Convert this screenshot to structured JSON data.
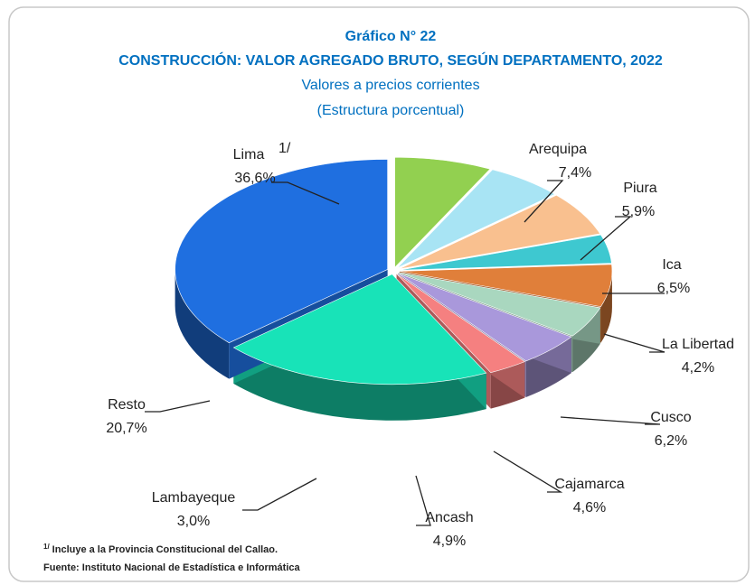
{
  "chart_data": {
    "type": "pie",
    "title": "Gráfico N° 22",
    "subtitle": "CONSTRUCCIÓN: VALOR AGREGADO BRUTO, SEGÚN DEPARTAMENTO, 2022",
    "subtitle2": "Valores a precios corrientes",
    "subtitle3": "(Estructura porcentual)",
    "categories": [
      "Arequipa",
      "Piura",
      "Ica",
      "La Libertad",
      "Cusco",
      "Cajamarca",
      "Ancash",
      "Lambayeque",
      "Resto",
      "Lima"
    ],
    "values": [
      7.4,
      5.9,
      6.5,
      4.2,
      6.2,
      4.6,
      4.9,
      3.0,
      20.7,
      36.6
    ],
    "value_labels": [
      "7,4%",
      "5,9%",
      "6,5%",
      "4,2%",
      "6,2%",
      "4,6%",
      "4,9%",
      "3,0%",
      "20,7%",
      "36,6%"
    ],
    "colors": [
      "#92d050",
      "#a8e4f4",
      "#f9c08f",
      "#3ec8d0",
      "#e07f3a",
      "#a9d7bf",
      "#a998db",
      "#f58080",
      "#18e3b8",
      "#1f6fe0"
    ],
    "footnote": {
      "marker": "1/",
      "text": "Incluye a la Provincia Constitucional del Callao."
    },
    "source": "Fuente: Instituto Nacional de Estadística e Informática"
  }
}
